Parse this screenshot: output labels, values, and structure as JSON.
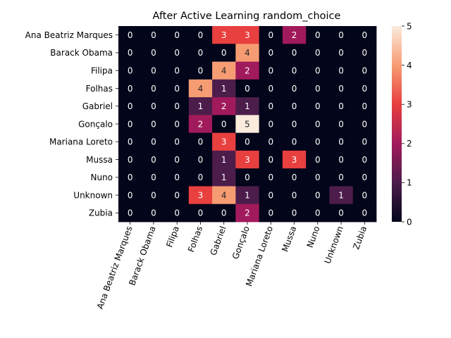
{
  "chart_data": {
    "type": "heatmap",
    "title": "After Active Learning random_choice",
    "xlabel": "",
    "ylabel": "",
    "x_categories": [
      "Ana Beatriz Marques",
      "Barack Obama",
      "Filipa",
      "Folhas",
      "Gabriel",
      "Gonçalo",
      "Mariana Loreto",
      "Mussa",
      "Nuno",
      "Unknown",
      "Zubia"
    ],
    "y_categories": [
      "Ana Beatriz Marques",
      "Barack Obama",
      "Filipa",
      "Folhas",
      "Gabriel",
      "Gonçalo",
      "Mariana Loreto",
      "Mussa",
      "Nuno",
      "Unknown",
      "Zubia"
    ],
    "values": [
      [
        0,
        0,
        0,
        0,
        3,
        3,
        0,
        2,
        0,
        0,
        0
      ],
      [
        0,
        0,
        0,
        0,
        0,
        4,
        0,
        0,
        0,
        0,
        0
      ],
      [
        0,
        0,
        0,
        0,
        4,
        2,
        0,
        0,
        0,
        0,
        0
      ],
      [
        0,
        0,
        0,
        4,
        1,
        0,
        0,
        0,
        0,
        0,
        0
      ],
      [
        0,
        0,
        0,
        1,
        2,
        1,
        0,
        0,
        0,
        0,
        0
      ],
      [
        0,
        0,
        0,
        2,
        0,
        5,
        0,
        0,
        0,
        0,
        0
      ],
      [
        0,
        0,
        0,
        0,
        3,
        0,
        0,
        0,
        0,
        0,
        0
      ],
      [
        0,
        0,
        0,
        0,
        1,
        3,
        0,
        3,
        0,
        0,
        0
      ],
      [
        0,
        0,
        0,
        0,
        1,
        0,
        0,
        0,
        0,
        0,
        0
      ],
      [
        0,
        0,
        0,
        3,
        4,
        1,
        0,
        0,
        0,
        1,
        0
      ],
      [
        0,
        0,
        0,
        0,
        0,
        2,
        0,
        0,
        0,
        0,
        0
      ]
    ],
    "vmin": 0,
    "vmax": 5,
    "colorbar_ticks": [
      0,
      1,
      2,
      3,
      4,
      5
    ],
    "colormap": "rocket",
    "colormap_stops": [
      "#03051a",
      "#4c1d4b",
      "#a11a5b",
      "#e83f3f",
      "#f69c73",
      "#faebdd"
    ]
  }
}
